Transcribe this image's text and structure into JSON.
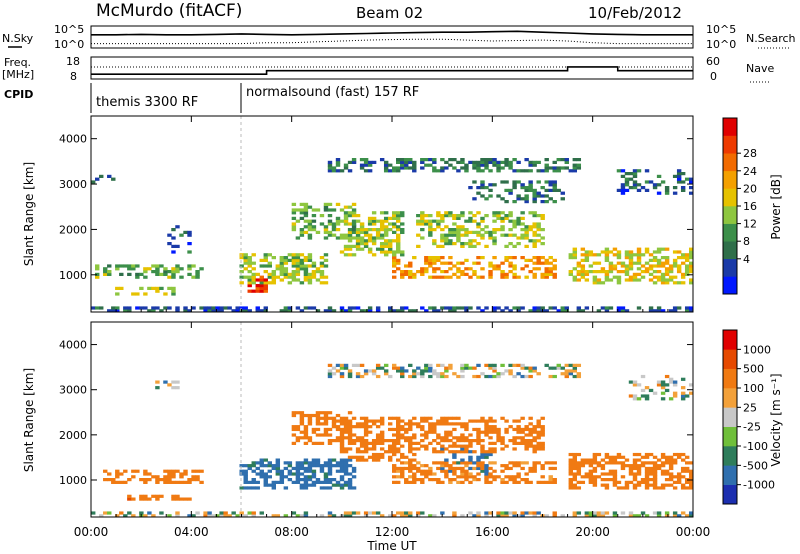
{
  "header": {
    "station": "McMurdo (fitACF)",
    "beam": "Beam 02",
    "date": "10/Feb/2012"
  },
  "top_panels": {
    "nsky_label": "N.Sky",
    "nsky_ticks": [
      "10^5",
      "10^0"
    ],
    "nsearch_label": "N.Search",
    "nsearch_ticks": [
      "10^5",
      "10^0"
    ],
    "freq_label": "Freq.",
    "freq_unit": "[MHz]",
    "freq_ticks": [
      "18",
      "8"
    ],
    "nave_label": "Nave",
    "nave_ticks": [
      "60",
      "0"
    ],
    "cpid_label": "CPID",
    "cpid_segments": [
      {
        "start": 0,
        "end": 6,
        "text": "themis 3300 RF"
      },
      {
        "start": 6,
        "end": 24,
        "text": "normalsound (fast) 157 RF"
      }
    ]
  },
  "time_axis": {
    "label": "Time UT",
    "ticks": [
      "00:00",
      "04:00",
      "08:00",
      "12:00",
      "16:00",
      "20:00",
      "00:00"
    ]
  },
  "colorbars": {
    "power": {
      "label": "Power [dB]",
      "ticks": [
        "28",
        "24",
        "20",
        "16",
        "12",
        "8",
        "4"
      ],
      "colors": [
        "#0018ff",
        "#1a3aa8",
        "#2f6f4a",
        "#3c8f4a",
        "#8ec63f",
        "#e6c200",
        "#f4a000",
        "#f26b00",
        "#ee3a00",
        "#e00000"
      ]
    },
    "velocity": {
      "label": "Velocity [m s⁻¹]",
      "ticks": [
        "1000",
        "500",
        "100",
        "25",
        "-25",
        "-100",
        "-500",
        "-1000"
      ],
      "colors": [
        "#1c2fb0",
        "#2f6fae",
        "#2e7d5b",
        "#6fbf3a",
        "#c8c8c8",
        "#f3a13a",
        "#f07a12",
        "#e64a00",
        "#e00000"
      ]
    }
  },
  "chart_data": [
    {
      "type": "line",
      "title": "N.Sky / N.Search",
      "x": [
        0,
        1,
        2,
        3,
        4,
        5,
        6,
        7,
        8,
        9,
        10,
        11,
        12,
        13,
        14,
        15,
        16,
        17,
        18,
        19,
        20,
        21,
        22,
        23,
        24
      ],
      "series": [
        {
          "name": "N.Sky",
          "values": [
            3.0,
            3.0,
            3.1,
            3.0,
            3.0,
            3.1,
            3.2,
            3.1,
            3.0,
            3.1,
            3.2,
            3.3,
            3.4,
            3.5,
            3.6,
            3.6,
            3.7,
            3.8,
            3.6,
            3.4,
            3.2,
            3.1,
            3.0,
            3.0,
            3.0
          ]
        },
        {
          "name": "N.Search",
          "values": [
            1.0,
            1.0,
            1.0,
            1.0,
            1.0,
            1.0,
            1.0,
            1.2,
            1.2,
            1.4,
            1.6,
            1.8,
            1.9,
            2.0,
            2.0,
            1.8,
            1.6,
            1.7,
            1.8,
            1.6,
            1.2,
            1.0,
            1.0,
            1.0,
            1.0
          ]
        }
      ],
      "ylim": [
        0,
        5
      ]
    },
    {
      "type": "line",
      "title": "Freq. / Nave",
      "x": [
        0,
        2,
        4,
        6,
        7,
        8,
        9,
        10,
        11,
        12,
        13,
        14,
        15,
        16,
        17,
        18,
        19,
        20,
        21,
        22,
        23,
        24
      ],
      "series": [
        {
          "name": "Freq. [MHz]",
          "values": [
            10.2,
            10.2,
            10.2,
            10.2,
            11.8,
            11.8,
            11.8,
            11.8,
            11.8,
            11.8,
            11.8,
            11.8,
            11.8,
            11.8,
            11.8,
            11.8,
            13.5,
            13.5,
            11.8,
            11.8,
            11.8,
            11.8
          ]
        },
        {
          "name": "Nave",
          "values": [
            30,
            30,
            30,
            30,
            30,
            30,
            30,
            30,
            30,
            30,
            30,
            30,
            30,
            30,
            30,
            30,
            30,
            30,
            30,
            30,
            30,
            30
          ]
        }
      ],
      "ylim": [
        8,
        18
      ]
    },
    {
      "type": "heatmap",
      "title": "Power",
      "xlabel": "Time UT",
      "ylabel": "Slant Range [km]",
      "xlim": [
        0,
        24
      ],
      "ylim": [
        180,
        4500
      ],
      "yticks": [
        1000,
        2000,
        3000,
        4000
      ],
      "zlabel": "Power [dB]",
      "zlim": [
        0,
        30
      ],
      "patches": [
        {
          "t0": 0.0,
          "t1": 24.0,
          "r0": 200,
          "r1": 320,
          "level": 6,
          "density": 0.55
        },
        {
          "t0": 0.2,
          "t1": 4.5,
          "r0": 900,
          "r1": 1250,
          "level": 12,
          "density": 0.45
        },
        {
          "t0": 1.0,
          "t1": 3.5,
          "r0": 560,
          "r1": 720,
          "level": 14,
          "density": 0.45
        },
        {
          "t0": 0.0,
          "t1": 1.0,
          "r0": 3000,
          "r1": 3200,
          "level": 5,
          "density": 0.3
        },
        {
          "t0": 3.0,
          "t1": 4.0,
          "r0": 1500,
          "r1": 2100,
          "level": 6,
          "density": 0.25
        },
        {
          "t0": 6.0,
          "t1": 9.5,
          "r0": 800,
          "r1": 1500,
          "level": 14,
          "density": 0.55
        },
        {
          "t0": 6.3,
          "t1": 7.0,
          "r0": 600,
          "r1": 1000,
          "level": 26,
          "density": 0.7
        },
        {
          "t0": 8.0,
          "t1": 10.5,
          "r0": 1800,
          "r1": 2600,
          "level": 12,
          "density": 0.4
        },
        {
          "t0": 9.5,
          "t1": 19.5,
          "r0": 3250,
          "r1": 3550,
          "level": 8,
          "density": 0.45
        },
        {
          "t0": 10.0,
          "t1": 12.5,
          "r0": 1400,
          "r1": 2400,
          "level": 14,
          "density": 0.5
        },
        {
          "t0": 12.0,
          "t1": 18.5,
          "r0": 900,
          "r1": 1400,
          "level": 20,
          "density": 0.45
        },
        {
          "t0": 13.0,
          "t1": 18.0,
          "r0": 1600,
          "r1": 2400,
          "level": 14,
          "density": 0.45
        },
        {
          "t0": 15.0,
          "t1": 19.0,
          "r0": 2600,
          "r1": 3100,
          "level": 8,
          "density": 0.3
        },
        {
          "t0": 19.0,
          "t1": 24.0,
          "r0": 800,
          "r1": 1600,
          "level": 16,
          "density": 0.5
        },
        {
          "t0": 21.0,
          "t1": 24.0,
          "r0": 2800,
          "r1": 3300,
          "level": 6,
          "density": 0.3
        }
      ]
    },
    {
      "type": "heatmap",
      "title": "Velocity",
      "xlabel": "Time UT",
      "ylabel": "Slant Range [km]",
      "xlim": [
        0,
        24
      ],
      "ylim": [
        180,
        4500
      ],
      "yticks": [
        1000,
        2000,
        3000,
        4000
      ],
      "zlabel": "Velocity [m s⁻¹]",
      "zlim": [
        -1000,
        1000
      ],
      "patches": [
        {
          "t0": 0.0,
          "t1": 24.0,
          "r0": 200,
          "r1": 320,
          "level": 0,
          "density": 0.5
        },
        {
          "t0": 0.5,
          "t1": 4.5,
          "r0": 900,
          "r1": 1250,
          "level": -300,
          "density": 0.45
        },
        {
          "t0": 1.5,
          "t1": 4.0,
          "r0": 560,
          "r1": 700,
          "level": -400,
          "density": 0.5
        },
        {
          "t0": 2.5,
          "t1": 3.5,
          "r0": 3000,
          "r1": 3200,
          "level": 0,
          "density": 0.3
        },
        {
          "t0": 6.0,
          "t1": 10.5,
          "r0": 800,
          "r1": 1500,
          "level": 200,
          "density": 0.6
        },
        {
          "t0": 8.0,
          "t1": 10.5,
          "r0": 1800,
          "r1": 2500,
          "level": -300,
          "density": 0.5
        },
        {
          "t0": 9.5,
          "t1": 19.5,
          "r0": 3250,
          "r1": 3550,
          "level": 0,
          "density": 0.45
        },
        {
          "t0": 10.0,
          "t1": 13.0,
          "r0": 1400,
          "r1": 2400,
          "level": -300,
          "density": 0.55
        },
        {
          "t0": 12.0,
          "t1": 18.5,
          "r0": 900,
          "r1": 1400,
          "level": -200,
          "density": 0.5
        },
        {
          "t0": 13.0,
          "t1": 18.0,
          "r0": 1600,
          "r1": 2400,
          "level": -300,
          "density": 0.45
        },
        {
          "t0": 14.0,
          "t1": 16.0,
          "r0": 1100,
          "r1": 1700,
          "level": 200,
          "density": 0.35
        },
        {
          "t0": 19.0,
          "t1": 24.0,
          "r0": 800,
          "r1": 1600,
          "level": -350,
          "density": 0.55
        },
        {
          "t0": 21.5,
          "t1": 24.0,
          "r0": 2800,
          "r1": 3300,
          "level": 0,
          "density": 0.3
        }
      ]
    }
  ]
}
